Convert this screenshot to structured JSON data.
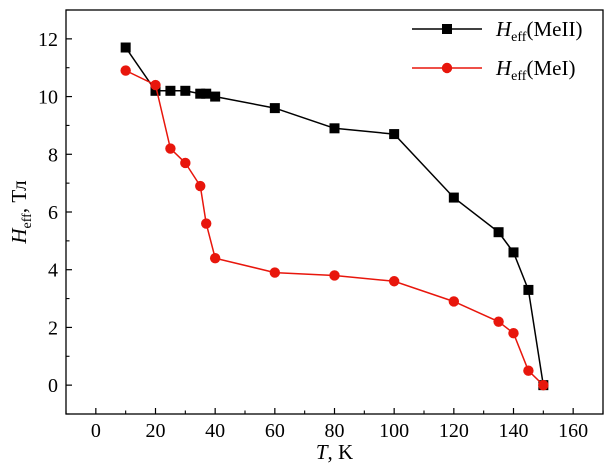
{
  "chart_data": {
    "type": "line",
    "xlabel": {
      "var": "T",
      "sep": ", ",
      "unit": "K"
    },
    "ylabel": {
      "var": "H",
      "sub": "eff",
      "sep": ", ",
      "unit": "Тл"
    },
    "xlim": [
      -10,
      170
    ],
    "ylim": [
      -1,
      13
    ],
    "xticks": [
      0,
      20,
      40,
      60,
      80,
      100,
      120,
      140,
      160
    ],
    "yticks": [
      0,
      2,
      4,
      6,
      8,
      10,
      12
    ],
    "minor_ticks": true,
    "grid": false,
    "legend": {
      "position": "top-right"
    },
    "series": [
      {
        "name": {
          "var": "H",
          "sub": "eff",
          "label": "(MeII)"
        },
        "color": "#000000",
        "marker": "square",
        "x": [
          10,
          20,
          25,
          30,
          35,
          37,
          40,
          60,
          80,
          100,
          120,
          135,
          140,
          145,
          150
        ],
        "y": [
          11.7,
          10.2,
          10.2,
          10.2,
          10.1,
          10.1,
          10.0,
          9.6,
          8.9,
          8.7,
          6.5,
          5.3,
          4.6,
          3.3,
          0.0
        ]
      },
      {
        "name": {
          "var": "H",
          "sub": "eff",
          "label": "(MeI)"
        },
        "color": "#e8160c",
        "marker": "circle",
        "x": [
          10,
          20,
          25,
          30,
          35,
          37,
          40,
          60,
          80,
          100,
          120,
          135,
          140,
          145,
          150
        ],
        "y": [
          10.9,
          10.4,
          8.2,
          7.7,
          6.9,
          5.6,
          4.4,
          3.9,
          3.8,
          3.6,
          2.9,
          2.2,
          1.8,
          0.5,
          0.0
        ]
      }
    ]
  }
}
